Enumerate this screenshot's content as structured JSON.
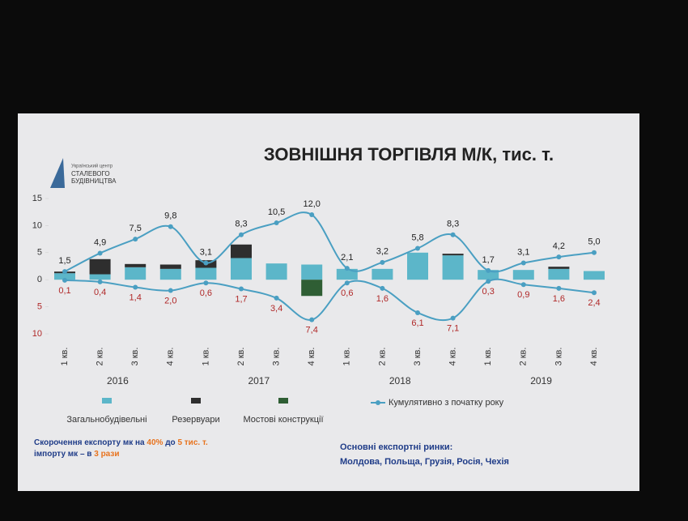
{
  "logo": {
    "top": "Український центр",
    "name1": "СТАЛЕВОГО",
    "name2": "БУДІВНИЦТВА"
  },
  "chart_data": {
    "type": "bar-line",
    "title": "ЗОВНІШНЯ ТОРГІВЛЯ М/К, тис. т.",
    "categories": [
      "1 кв.",
      "2 кв.",
      "3 кв.",
      "4 кв.",
      "1 кв.",
      "2 кв.",
      "3 кв.",
      "4 кв.",
      "1 кв.",
      "2 кв.",
      "3 кв.",
      "4 кв.",
      "1 кв.",
      "2 кв.",
      "3 кв.",
      "4 кв."
    ],
    "years": [
      "2016",
      "2017",
      "2018",
      "2019"
    ],
    "ylim": [
      -10,
      15
    ],
    "yticks": [
      {
        "value": -10,
        "label": "10"
      },
      {
        "value": -5,
        "label": "5"
      },
      0,
      5,
      10,
      15
    ],
    "series": [
      {
        "name": "Загальнобудівельні",
        "color": "#5cb6c9",
        "values": [
          1.2,
          1.0,
          2.3,
          2.0,
          2.2,
          4.0,
          3.0,
          2.8,
          2.0,
          2.0,
          5.0,
          4.5,
          1.8,
          1.8,
          2.0,
          1.6
        ]
      },
      {
        "name": "Резервуари",
        "color": "#2e2e2e",
        "values": [
          0.3,
          2.8,
          0.6,
          0.8,
          1.4,
          2.5,
          0,
          0,
          0,
          0,
          0,
          0.3,
          0,
          0,
          0.4,
          0
        ]
      },
      {
        "name": "Мостові конструкції",
        "color": "#2f5e34",
        "values": [
          0,
          0,
          0,
          0,
          0,
          0,
          0,
          -3.0,
          0,
          0,
          0,
          0,
          0,
          0,
          0,
          0
        ]
      }
    ],
    "lines": [
      {
        "name": "Кумулятивно з початку року",
        "color": "#4a9fc2",
        "values": [
          1.5,
          4.9,
          7.5,
          9.8,
          3.1,
          8.3,
          10.5,
          12.0,
          2.1,
          3.2,
          5.8,
          8.3,
          1.7,
          3.1,
          4.2,
          5.0
        ],
        "value_labels": [
          "1,5",
          "4,9",
          "7,5",
          "9,8",
          "3,1",
          "8,3",
          "10,5",
          "12,0",
          "2,1",
          "3,2",
          "5,8",
          "8,3",
          "1,7",
          "3,1",
          "4,2",
          "5,0"
        ]
      },
      {
        "color": "#4a9fc2",
        "values": [
          -0.1,
          -0.4,
          -1.4,
          -2.0,
          -0.6,
          -1.7,
          -3.4,
          -7.4,
          -0.6,
          -1.6,
          -6.1,
          -7.1,
          -0.3,
          -0.9,
          -1.6,
          -2.4
        ],
        "value_labels": [
          "0,1",
          "0,4",
          "1,4",
          "2,0",
          "0,6",
          "1,7",
          "3,4",
          "7,4",
          "0,6",
          "1,6",
          "6,1",
          "7,1",
          "0,3",
          "0,9",
          "1,6",
          "2,4"
        ]
      }
    ]
  },
  "notes": {
    "line1": [
      "Скорочення експорту мк на ",
      "40%",
      " до ",
      "5 тис. т."
    ],
    "line2": [
      "імпорту мк – в ",
      "3 рази"
    ]
  },
  "markets": {
    "title": "Основні експортні ринки:",
    "list": "Молдова, Польща, Грузія, Росія, Чехія"
  }
}
